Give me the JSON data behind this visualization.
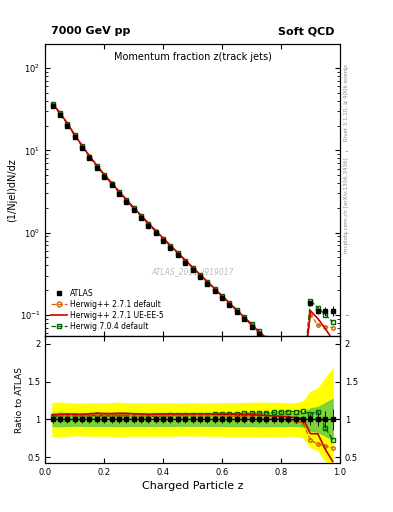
{
  "title_top_left": "7000 GeV pp",
  "title_top_right": "Soft QCD",
  "plot_title": "Momentum fraction z(track jets)",
  "xlabel": "Charged Particle z",
  "ylabel_main": "(1/Njel)dN/dz",
  "ylabel_ratio": "Ratio to ATLAS",
  "right_label_top": "Rivet 3.1.10, ≥ 400k events",
  "right_label_bot": "mcplots.cern.ch [arXiv:1306.3436]",
  "watermark": "ATLAS_2011_I919017",
  "atlas_x": [
    0.025,
    0.05,
    0.075,
    0.1,
    0.125,
    0.15,
    0.175,
    0.2,
    0.225,
    0.25,
    0.275,
    0.3,
    0.325,
    0.35,
    0.375,
    0.4,
    0.425,
    0.45,
    0.475,
    0.5,
    0.525,
    0.55,
    0.575,
    0.6,
    0.625,
    0.65,
    0.675,
    0.7,
    0.725,
    0.75,
    0.775,
    0.8,
    0.825,
    0.85,
    0.875,
    0.9,
    0.925,
    0.95,
    0.975
  ],
  "atlas_y": [
    35.0,
    27.0,
    20.0,
    14.5,
    10.8,
    8.0,
    6.1,
    4.75,
    3.75,
    2.95,
    2.35,
    1.88,
    1.52,
    1.22,
    0.99,
    0.8,
    0.652,
    0.53,
    0.432,
    0.353,
    0.289,
    0.237,
    0.194,
    0.159,
    0.13,
    0.107,
    0.0877,
    0.0718,
    0.0588,
    0.0481,
    0.0393,
    0.032,
    0.026,
    0.0211,
    0.0171,
    0.138,
    0.111,
    0.112,
    0.112
  ],
  "atlas_yerr": [
    1.5,
    1.2,
    0.85,
    0.6,
    0.45,
    0.34,
    0.26,
    0.2,
    0.16,
    0.13,
    0.1,
    0.08,
    0.065,
    0.052,
    0.042,
    0.034,
    0.028,
    0.022,
    0.018,
    0.015,
    0.012,
    0.01,
    0.0083,
    0.0068,
    0.0056,
    0.0046,
    0.0038,
    0.0031,
    0.0026,
    0.0021,
    0.0017,
    0.0014,
    0.0011,
    0.0009,
    0.0008,
    0.01,
    0.009,
    0.012,
    0.015
  ],
  "hw271_x": [
    0.025,
    0.05,
    0.075,
    0.1,
    0.125,
    0.15,
    0.175,
    0.2,
    0.225,
    0.25,
    0.275,
    0.3,
    0.325,
    0.35,
    0.375,
    0.4,
    0.425,
    0.45,
    0.475,
    0.5,
    0.525,
    0.55,
    0.575,
    0.6,
    0.625,
    0.65,
    0.675,
    0.7,
    0.725,
    0.75,
    0.775,
    0.8,
    0.825,
    0.85,
    0.875,
    0.9,
    0.925,
    0.95,
    0.975
  ],
  "hw271_y": [
    36.8,
    28.5,
    21.2,
    15.4,
    11.4,
    8.5,
    6.5,
    5.05,
    3.98,
    3.14,
    2.5,
    1.99,
    1.6,
    1.28,
    1.04,
    0.845,
    0.688,
    0.561,
    0.457,
    0.373,
    0.305,
    0.25,
    0.204,
    0.167,
    0.136,
    0.111,
    0.0908,
    0.0741,
    0.0604,
    0.049,
    0.0397,
    0.0321,
    0.0257,
    0.0206,
    0.0163,
    0.1,
    0.075,
    0.072,
    0.07
  ],
  "hw271uee5_x": [
    0.025,
    0.05,
    0.075,
    0.1,
    0.125,
    0.15,
    0.175,
    0.2,
    0.225,
    0.25,
    0.275,
    0.3,
    0.325,
    0.35,
    0.375,
    0.4,
    0.425,
    0.45,
    0.475,
    0.5,
    0.525,
    0.55,
    0.575,
    0.6,
    0.625,
    0.65,
    0.675,
    0.7,
    0.725,
    0.75,
    0.775,
    0.8,
    0.825,
    0.85,
    0.875,
    0.9,
    0.925,
    0.95,
    0.975
  ],
  "hw271uee5_y": [
    37.0,
    28.8,
    21.4,
    15.5,
    11.5,
    8.6,
    6.6,
    5.12,
    4.04,
    3.19,
    2.54,
    2.02,
    1.63,
    1.3,
    1.06,
    0.858,
    0.698,
    0.569,
    0.464,
    0.379,
    0.31,
    0.254,
    0.208,
    0.17,
    0.139,
    0.114,
    0.0932,
    0.0762,
    0.0622,
    0.0506,
    0.0411,
    0.0333,
    0.0269,
    0.0216,
    0.0173,
    0.112,
    0.09,
    0.068,
    0.05
  ],
  "hw704_x": [
    0.025,
    0.05,
    0.075,
    0.1,
    0.125,
    0.15,
    0.175,
    0.2,
    0.225,
    0.25,
    0.275,
    0.3,
    0.325,
    0.35,
    0.375,
    0.4,
    0.425,
    0.45,
    0.475,
    0.5,
    0.525,
    0.55,
    0.575,
    0.6,
    0.625,
    0.65,
    0.675,
    0.7,
    0.725,
    0.75,
    0.775,
    0.8,
    0.825,
    0.85,
    0.875,
    0.9,
    0.925,
    0.95,
    0.975
  ],
  "hw704_y": [
    36.5,
    28.2,
    21.0,
    15.2,
    11.3,
    8.4,
    6.42,
    4.98,
    3.93,
    3.1,
    2.47,
    1.97,
    1.59,
    1.27,
    1.03,
    0.84,
    0.686,
    0.56,
    0.457,
    0.374,
    0.307,
    0.252,
    0.207,
    0.17,
    0.14,
    0.115,
    0.0948,
    0.0778,
    0.0638,
    0.0524,
    0.043,
    0.0352,
    0.0287,
    0.0233,
    0.0189,
    0.148,
    0.122,
    0.1,
    0.082
  ],
  "atlas_color": "#000000",
  "hw271_color": "#cc6600",
  "hw271uee5_color": "#cc0000",
  "hw704_color": "#006600",
  "yellow_band_color": "#ffff00",
  "green_band_color": "#66cc44",
  "xlim": [
    0.0,
    1.0
  ],
  "ylim_main": [
    0.055,
    200.0
  ],
  "ylim_ratio": [
    0.42,
    2.1
  ],
  "ratio_yticks": [
    0.5,
    1.0,
    1.5,
    2.0
  ],
  "legend_labels": [
    "ATLAS",
    "Herwig++ 2.7.1 default",
    "Herwig++ 2.7.1 UE-EE-5",
    "Herwig 7.0.4 default"
  ]
}
